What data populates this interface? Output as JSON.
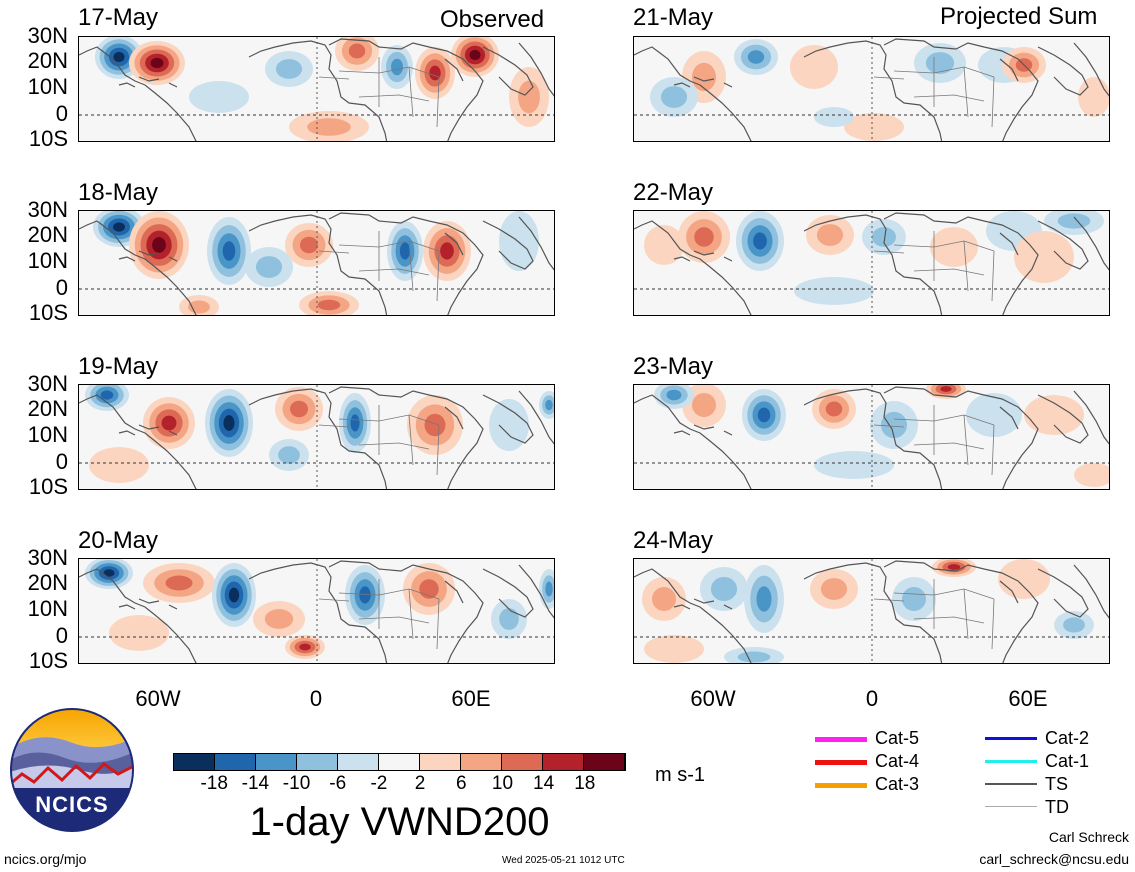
{
  "columns": {
    "left": {
      "title": "Observed"
    },
    "right": {
      "title": "Projected Sum"
    }
  },
  "panels": {
    "left": [
      {
        "date": "17-May"
      },
      {
        "date": "18-May"
      },
      {
        "date": "19-May"
      },
      {
        "date": "20-May"
      }
    ],
    "right": [
      {
        "date": "21-May"
      },
      {
        "date": "22-May"
      },
      {
        "date": "23-May"
      },
      {
        "date": "24-May"
      }
    ]
  },
  "lat_labels": [
    "30N",
    "20N",
    "10N",
    "0",
    "10S"
  ],
  "lon_labels": [
    "60W",
    "0",
    "60E"
  ],
  "colorbar": {
    "colors": [
      "#0a2f5c",
      "#1f66ad",
      "#4a95c8",
      "#8fc1de",
      "#cbe1ee",
      "#f6f6f6",
      "#fbd5c0",
      "#f3a584",
      "#dc6a55",
      "#b3222a",
      "#6b0418"
    ],
    "tick_labels": [
      "-18",
      "-14",
      "-10",
      "-6",
      "-2",
      "2",
      "6",
      "10",
      "14",
      "18"
    ],
    "units": "m s-1"
  },
  "main_title": "1-day VWND200",
  "legend": {
    "items": [
      {
        "label": "Cat-5",
        "color": "#ff22ee"
      },
      {
        "label": "Cat-4",
        "color": "#ee1111"
      },
      {
        "label": "Cat-3",
        "color": "#f5a000"
      },
      {
        "label": "Cat-2",
        "color": "#1010dd"
      },
      {
        "label": "Cat-1",
        "color": "#22eeee"
      },
      {
        "label": "TS",
        "color": "#555555"
      },
      {
        "label": "TD",
        "color": "#aaaaaa"
      }
    ]
  },
  "logo": {
    "text": "NCICS"
  },
  "footer": {
    "url": "ncics.org/mjo",
    "timestamp": "Wed 2025-05-21 1012 UTC",
    "author": "Carl Schreck",
    "email": "carl_schreck@ncsu.edu"
  }
}
